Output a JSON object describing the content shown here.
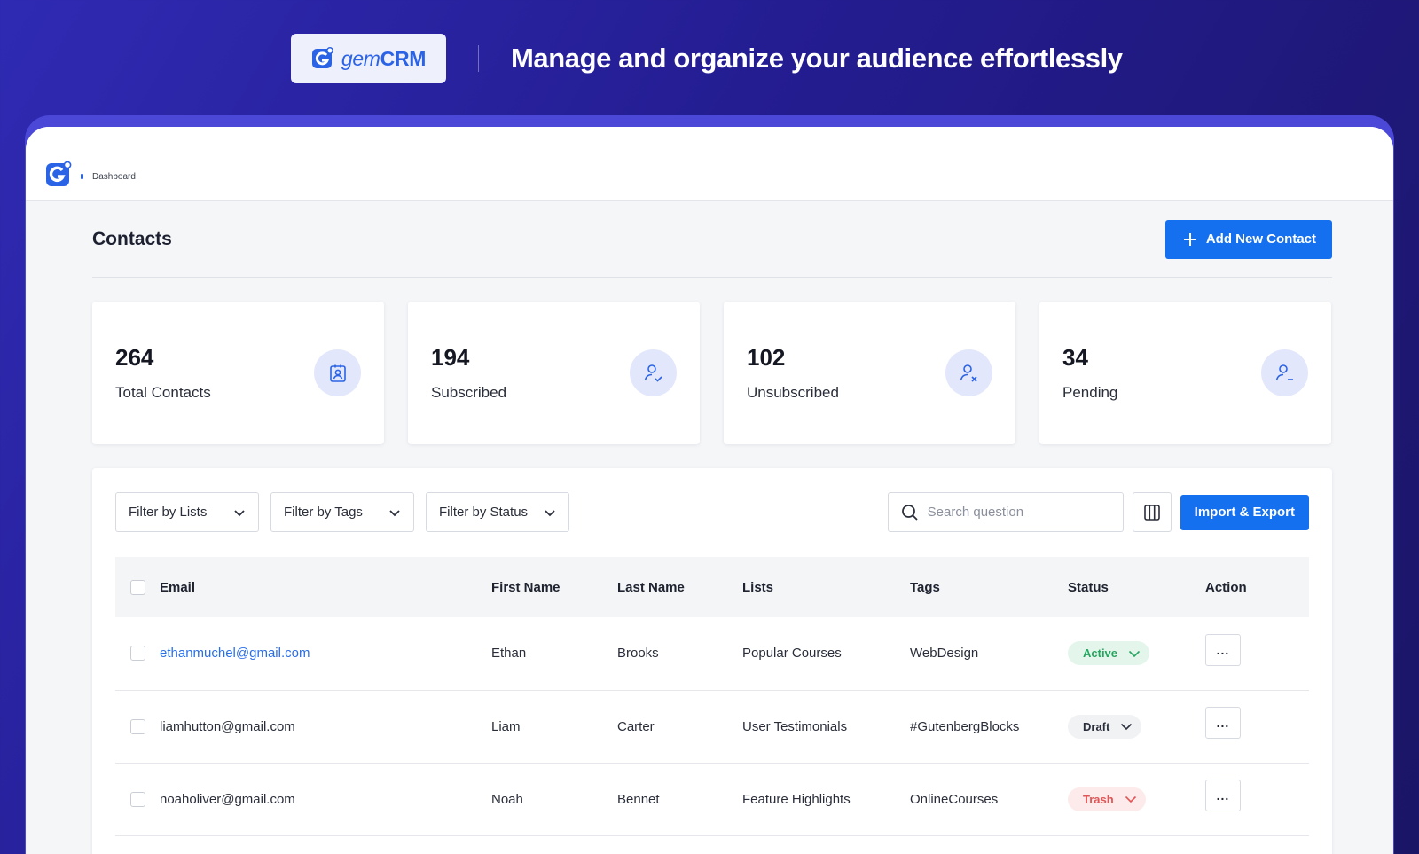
{
  "hero": {
    "brand_prefix": "gem",
    "brand_suffix": "CRM",
    "tagline": "Manage and organize your audience effortlessly"
  },
  "topbar": {
    "logo_icon": "gemcrm-logo-icon",
    "breadcrumb": "Dashboard"
  },
  "page": {
    "title": "Contacts",
    "add_button": "Add New Contact"
  },
  "stats": [
    {
      "value": "264",
      "label": "Total Contacts",
      "icon": "contact-card-icon"
    },
    {
      "value": "194",
      "label": "Subscribed",
      "icon": "user-check-icon"
    },
    {
      "value": "102",
      "label": "Unsubscribed",
      "icon": "user-x-icon"
    },
    {
      "value": "34",
      "label": "Pending",
      "icon": "user-minus-icon"
    }
  ],
  "toolbar": {
    "filters": [
      "Filter by Lists",
      "Filter by Tags",
      "Filter by Status"
    ],
    "search_placeholder": "Search question",
    "import_export": "Import & Export"
  },
  "table": {
    "columns": [
      "Email",
      "First Name",
      "Last Name",
      "Lists",
      "Tags",
      "Status",
      "Action"
    ],
    "rows": [
      {
        "email": "ethanmuchel@gmail.com",
        "first": "Ethan",
        "last": "Brooks",
        "list": "Popular Courses",
        "tag": "WebDesign",
        "status": "Active",
        "action": "..."
      },
      {
        "email": "liamhutton@gmail.com",
        "first": "Liam",
        "last": "Carter",
        "list": "User Testimonials",
        "tag": "#GutenbergBlocks",
        "status": "Draft",
        "action": "..."
      },
      {
        "email": "noaholiver@gmail.com",
        "first": "Noah",
        "last": "Bennet",
        "list": "Feature Highlights",
        "tag": "OnlineCourses",
        "status": "Trash",
        "action": "..."
      }
    ]
  },
  "colors": {
    "primary": "#1570ef",
    "active": "#27a560",
    "trash": "#e25555"
  }
}
